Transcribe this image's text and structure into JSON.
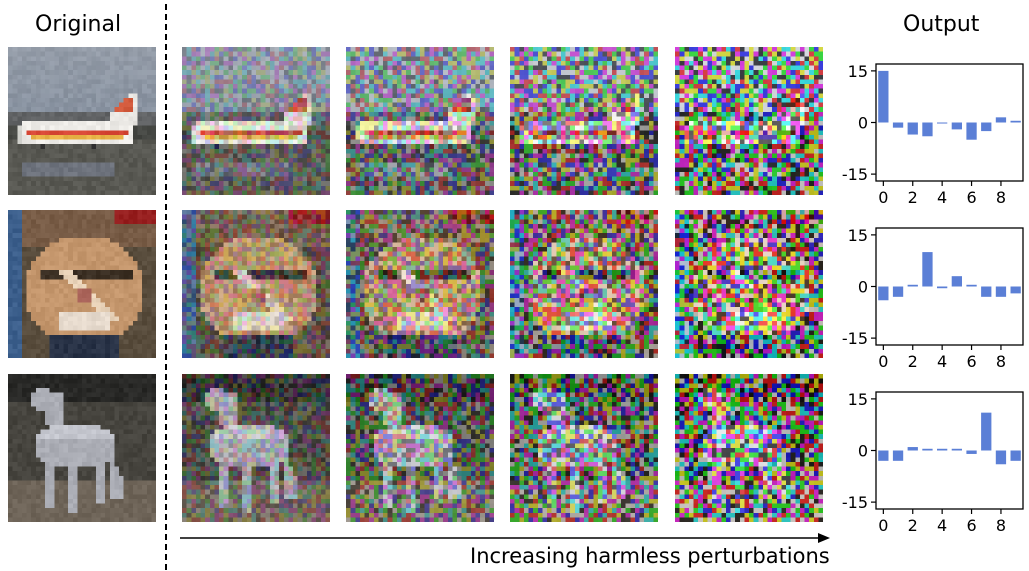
{
  "headers": {
    "original": "Original",
    "output": "Output"
  },
  "arrow_label": "Increasing harmless perturbations",
  "bar_color": "#5b7fd6",
  "rows": [
    {
      "subject": "airplane",
      "noise_levels": [
        0,
        0.25,
        0.45,
        0.65,
        0.85
      ]
    },
    {
      "subject": "cat",
      "noise_levels": [
        0,
        0.25,
        0.45,
        0.65,
        0.85
      ]
    },
    {
      "subject": "horse",
      "noise_levels": [
        0,
        0.25,
        0.45,
        0.65,
        0.85
      ]
    }
  ],
  "chart_data": [
    {
      "type": "bar",
      "x": [
        0,
        1,
        2,
        3,
        4,
        5,
        6,
        7,
        8,
        9
      ],
      "values": [
        15,
        -1.5,
        -3.5,
        -4,
        -0.3,
        -2,
        -5,
        -2.5,
        1.5,
        0.5
      ],
      "ylim": [
        -17,
        17
      ],
      "yticks": [
        15,
        0,
        -15
      ],
      "xticks": [
        0,
        2,
        4,
        6,
        8
      ]
    },
    {
      "type": "bar",
      "x": [
        0,
        1,
        2,
        3,
        4,
        5,
        6,
        7,
        8,
        9
      ],
      "values": [
        -4,
        -3,
        0.5,
        10,
        -0.5,
        3,
        0.5,
        -3,
        -3,
        -2
      ],
      "ylim": [
        -17,
        17
      ],
      "yticks": [
        15,
        0,
        -15
      ],
      "xticks": [
        0,
        2,
        4,
        6,
        8
      ]
    },
    {
      "type": "bar",
      "x": [
        0,
        1,
        2,
        3,
        4,
        5,
        6,
        7,
        8,
        9
      ],
      "values": [
        -3,
        -3,
        1,
        0.5,
        0.5,
        0.5,
        -1,
        11,
        -4,
        -3
      ],
      "ylim": [
        -17,
        17
      ],
      "yticks": [
        15,
        0,
        -15
      ],
      "xticks": [
        0,
        2,
        4,
        6,
        8
      ]
    }
  ]
}
